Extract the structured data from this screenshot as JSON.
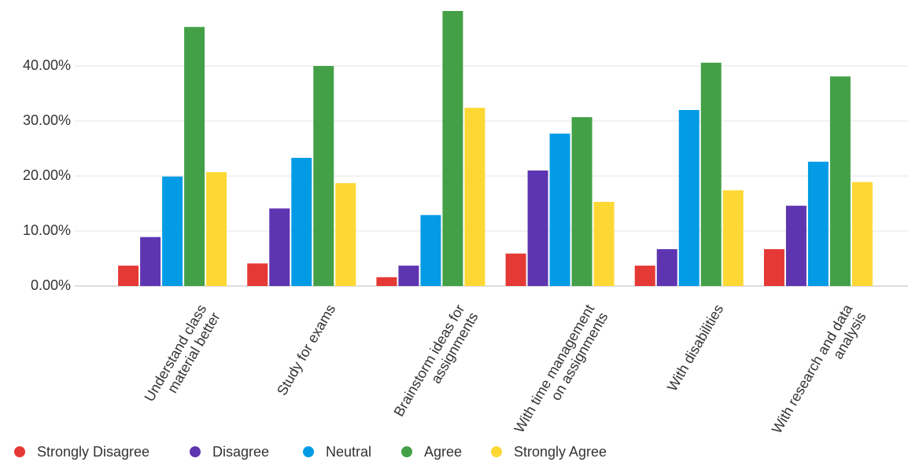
{
  "chart_data": {
    "type": "bar",
    "categories": [
      "Understand class material better",
      "Study for exams",
      "Brainstorm ideas for assignments",
      "With time management on assignments",
      "With disabilities",
      "With research and data analysis"
    ],
    "series": [
      {
        "name": "Strongly Disagree",
        "color": "#e53935",
        "values": [
          3.7,
          4.1,
          1.6,
          5.9,
          3.7,
          6.7
        ]
      },
      {
        "name": "Disagree",
        "color": "#5e35b1",
        "values": [
          8.9,
          14.1,
          3.7,
          21.0,
          6.7,
          14.6
        ]
      },
      {
        "name": "Neutral",
        "color": "#039be5",
        "values": [
          19.9,
          23.3,
          12.9,
          27.7,
          32.0,
          22.6
        ]
      },
      {
        "name": "Agree",
        "color": "#43a047",
        "values": [
          47.1,
          40.0,
          50.0,
          30.7,
          40.6,
          38.1
        ]
      },
      {
        "name": "Strongly Agree",
        "color": "#fdd835",
        "values": [
          20.7,
          18.7,
          32.4,
          15.3,
          17.4,
          18.9
        ]
      }
    ],
    "ylim": [
      0,
      50
    ],
    "yticks": [
      {
        "value": 0,
        "label": "0.00%"
      },
      {
        "value": 10,
        "label": "10.00%"
      },
      {
        "value": 20,
        "label": "20.00%"
      },
      {
        "value": 30,
        "label": "30.00%"
      },
      {
        "value": 40,
        "label": "40.00%"
      }
    ],
    "grid": true
  }
}
